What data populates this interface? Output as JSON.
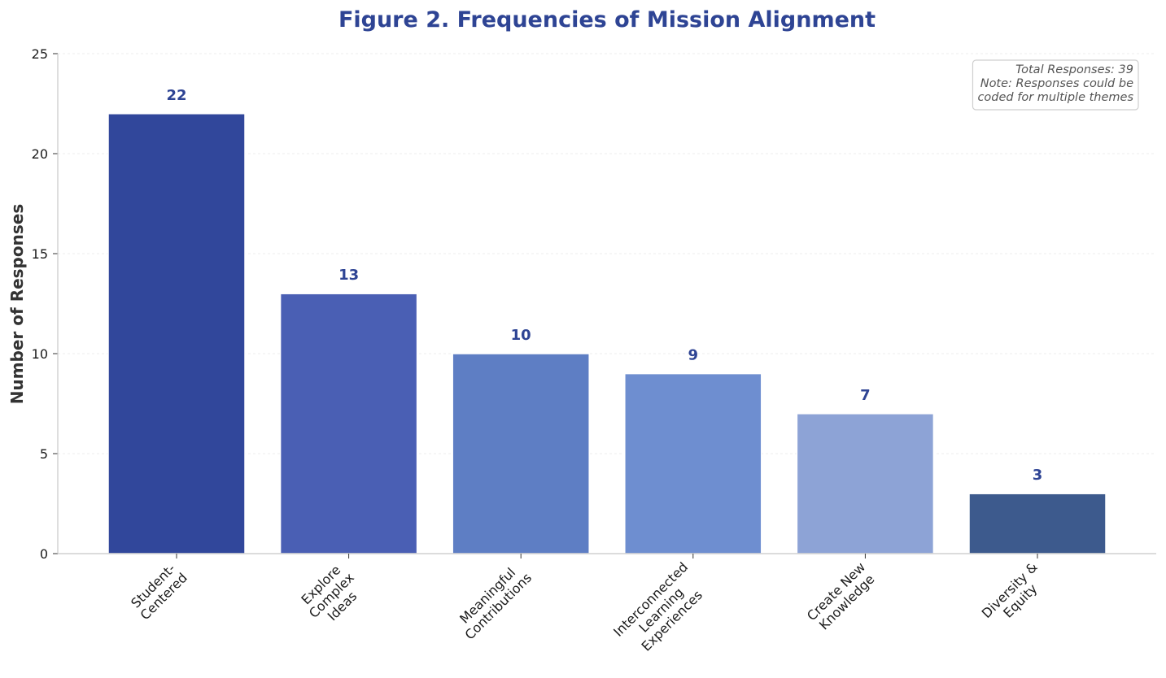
{
  "chart_data": {
    "type": "bar",
    "title": "Figure 2. Frequencies of Mission Alignment",
    "xlabel": "",
    "ylabel": "Number of Responses",
    "ylim": [
      0,
      25
    ],
    "yticks": [
      "0",
      "5",
      "10",
      "15",
      "20",
      "25"
    ],
    "categories": [
      "Student-\nCentered",
      "Explore\nComplex\nIdeas",
      "Meaningful\nContributions",
      "Interconnected\nLearning\nExperiences",
      "Create New\nKnowledge",
      "Diversity &\nEquity"
    ],
    "values": [
      22,
      13,
      10,
      9,
      7,
      3
    ],
    "value_labels": [
      "22",
      "13",
      "10",
      "9",
      "7",
      "3"
    ],
    "bar_colors": [
      "#31479B",
      "#4A5FB4",
      "#5E7EC4",
      "#6E8ED0",
      "#8DA3D6",
      "#3D5A8D"
    ],
    "grid": "y-dashed",
    "annotation": {
      "lines": [
        "Total Responses: 39",
        "Note: Responses could be",
        "coded for multiple themes"
      ],
      "placement": "top-right"
    }
  },
  "colors": {
    "title": "#2E4494",
    "value_labels": "#2E4494",
    "axis": "#c8c8c8",
    "grid": "#e6e6e6"
  }
}
